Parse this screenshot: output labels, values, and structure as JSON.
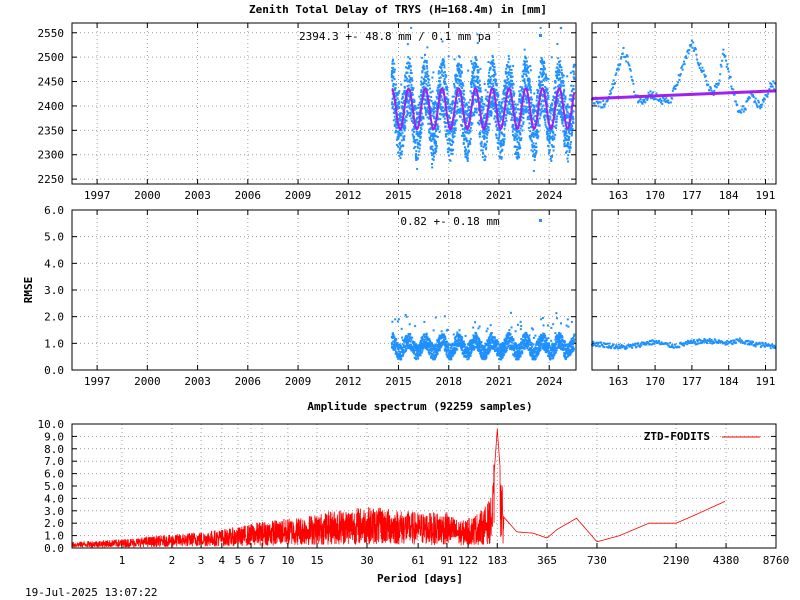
{
  "chart_data": [
    {
      "type": "scatter",
      "title": "Zenith Total Delay of TRYS (H=168.4m) in [mm]",
      "annotation": "2394.3 +-  48.8 mm /  0.1 mm pa",
      "ylabel": "",
      "xlim": [
        1995.5,
        2025.6
      ],
      "ylim": [
        2240,
        2570
      ],
      "x_ticks": [
        "1997",
        "2000",
        "2003",
        "2006",
        "2009",
        "2012",
        "2015",
        "2018",
        "2021",
        "2024"
      ],
      "y_ticks": [
        "2250",
        "2300",
        "2350",
        "2400",
        "2450",
        "2500",
        "2550"
      ],
      "series": [
        {
          "color": "#1e90ff",
          "data_start": 2014.6,
          "data_end": 2025.5,
          "mean": 2394.3,
          "amplitude": 48.8,
          "rate_per_year": 0.1,
          "min": 2250,
          "max": 2560
        },
        {
          "color": "#a020f0",
          "mean": 2394.3,
          "amplitude": 48.8,
          "rate_per_year": 0.1
        }
      ],
      "grid": true
    },
    {
      "type": "scatter",
      "title": "",
      "xlabel": "",
      "xlim": [
        158,
        193
      ],
      "ylim": [
        2240,
        2570
      ],
      "x_ticks": [
        "163",
        "170",
        "177",
        "184",
        "191"
      ],
      "series": [
        {
          "color": "#1e90ff",
          "x": [
            158,
            159,
            160,
            161,
            162,
            163,
            164,
            165,
            166,
            167,
            168,
            169,
            170,
            171,
            172,
            173,
            174,
            175,
            176,
            177,
            178,
            179,
            180,
            181,
            182,
            183,
            184,
            185,
            186,
            187,
            188,
            189,
            190,
            191,
            192,
            193
          ],
          "y": [
            2418,
            2405,
            2400,
            2412,
            2440,
            2480,
            2510,
            2490,
            2430,
            2410,
            2415,
            2425,
            2420,
            2412,
            2408,
            2415,
            2440,
            2470,
            2500,
            2530,
            2500,
            2470,
            2445,
            2425,
            2445,
            2510,
            2470,
            2420,
            2385,
            2395,
            2420,
            2410,
            2400,
            2415,
            2445,
            2438
          ]
        },
        {
          "color": "#a020f0",
          "x": [
            158,
            193
          ],
          "y": [
            2415,
            2431
          ]
        }
      ],
      "grid": true
    },
    {
      "type": "scatter",
      "ylabel": "RMSE",
      "annotation": "0.82 +-  0.18 mm",
      "xlim": [
        1995.5,
        2025.6
      ],
      "ylim": [
        0,
        6
      ],
      "x_ticks": [
        "1997",
        "2000",
        "2003",
        "2006",
        "2009",
        "2012",
        "2015",
        "2018",
        "2021",
        "2024"
      ],
      "y_ticks": [
        "0.0",
        "1.0",
        "2.0",
        "3.0",
        "4.0",
        "5.0",
        "6.0"
      ],
      "series": [
        {
          "color": "#1e90ff",
          "data_start": 2014.6,
          "data_end": 2025.5,
          "mean": 0.82,
          "std": 0.18,
          "max": 2.7
        }
      ],
      "grid": true
    },
    {
      "type": "scatter",
      "xlim": [
        158,
        193
      ],
      "ylim": [
        0,
        6
      ],
      "x_ticks": [
        "163",
        "170",
        "177",
        "184",
        "191"
      ],
      "series": [
        {
          "color": "#1e90ff",
          "x": [
            158,
            160,
            162,
            164,
            166,
            168,
            170,
            172,
            174,
            176,
            178,
            180,
            182,
            184,
            186,
            188,
            190,
            192,
            193
          ],
          "y": [
            1.0,
            0.95,
            0.9,
            0.85,
            0.9,
            1.0,
            1.05,
            0.95,
            0.9,
            1.0,
            1.05,
            1.1,
            1.05,
            1.0,
            1.1,
            1.0,
            0.95,
            0.9,
            0.9
          ]
        }
      ],
      "grid": true
    },
    {
      "type": "line",
      "title": "Amplitude spectrum (92259 samples)",
      "xlabel": "Period [days]",
      "x_scale": "log",
      "xlim": [
        0.5,
        8760
      ],
      "ylim": [
        0,
        10
      ],
      "x_ticks": [
        "1",
        "2",
        "3",
        "4",
        "5",
        "6",
        "7",
        "10",
        "15",
        "30",
        "61",
        "91",
        "122",
        "183",
        "365",
        "730",
        "2190",
        "4380",
        "8760"
      ],
      "y_ticks": [
        "0.0",
        "1.0",
        "2.0",
        "3.0",
        "4.0",
        "5.0",
        "6.0",
        "7.0",
        "8.0",
        "9.0",
        "10.0"
      ],
      "series": [
        {
          "name": "ZTD-FODITS",
          "color": "#ff0000",
          "x": [
            0.5,
            1,
            2,
            3,
            5,
            7,
            10,
            15,
            20,
            30,
            45,
            61,
            91,
            110,
            122,
            150,
            170,
            183,
            200,
            240,
            300,
            365,
            420,
            550,
            730,
            1000,
            1500,
            2190,
            3000,
            4380
          ],
          "y": [
            0.4,
            0.6,
            0.9,
            1.1,
            1.4,
            1.8,
            2.0,
            2.3,
            2.6,
            2.8,
            2.6,
            2.4,
            2.4,
            1.8,
            2.0,
            2.6,
            3.5,
            9.6,
            2.5,
            1.3,
            1.2,
            0.8,
            1.5,
            2.4,
            0.5,
            1.0,
            2.0,
            2.0,
            2.8,
            3.8
          ]
        }
      ],
      "grid": true
    }
  ],
  "footer": {
    "timestamp": "19-Jul-2025 13:07:22"
  }
}
